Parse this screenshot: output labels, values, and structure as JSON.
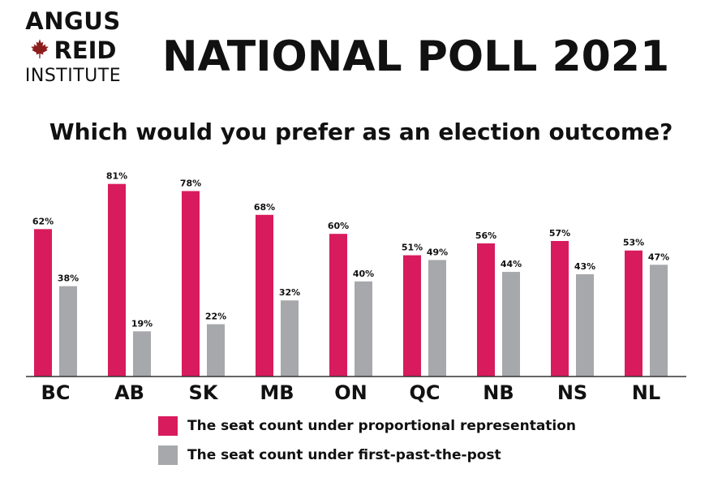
{
  "header": {
    "logo_line1": "ANGUS",
    "logo_line2": "REID",
    "logo_line3": "INSTITUTE",
    "logo_icon": "maple-leaf-icon",
    "title": "NATIONAL POLL 2021"
  },
  "colors": {
    "proportional": "#d81b5c",
    "fptp": "#a7a8ab",
    "logo_leaf": "#8c1d1d"
  },
  "chart_data": {
    "type": "bar",
    "title": "Which would you prefer as an election outcome?",
    "categories": [
      "BC",
      "AB",
      "SK",
      "MB",
      "ON",
      "QC",
      "NB",
      "NS",
      "NL"
    ],
    "series": [
      {
        "name": "The seat count under proportional representation",
        "values": [
          62,
          81,
          78,
          68,
          60,
          51,
          56,
          57,
          53
        ],
        "labels": [
          "62%",
          "81%",
          "78%",
          "68%",
          "60%",
          "51%",
          "56%",
          "57%",
          "53%"
        ]
      },
      {
        "name": "The seat count under first-past-the-post",
        "values": [
          38,
          19,
          22,
          32,
          40,
          49,
          44,
          43,
          47
        ],
        "labels": [
          "38%",
          "19%",
          "22%",
          "32%",
          "40%",
          "49%",
          "44%",
          "43%",
          "47%"
        ]
      }
    ],
    "ylim": [
      0,
      100
    ],
    "grid": false,
    "legend_position": "bottom-left"
  }
}
